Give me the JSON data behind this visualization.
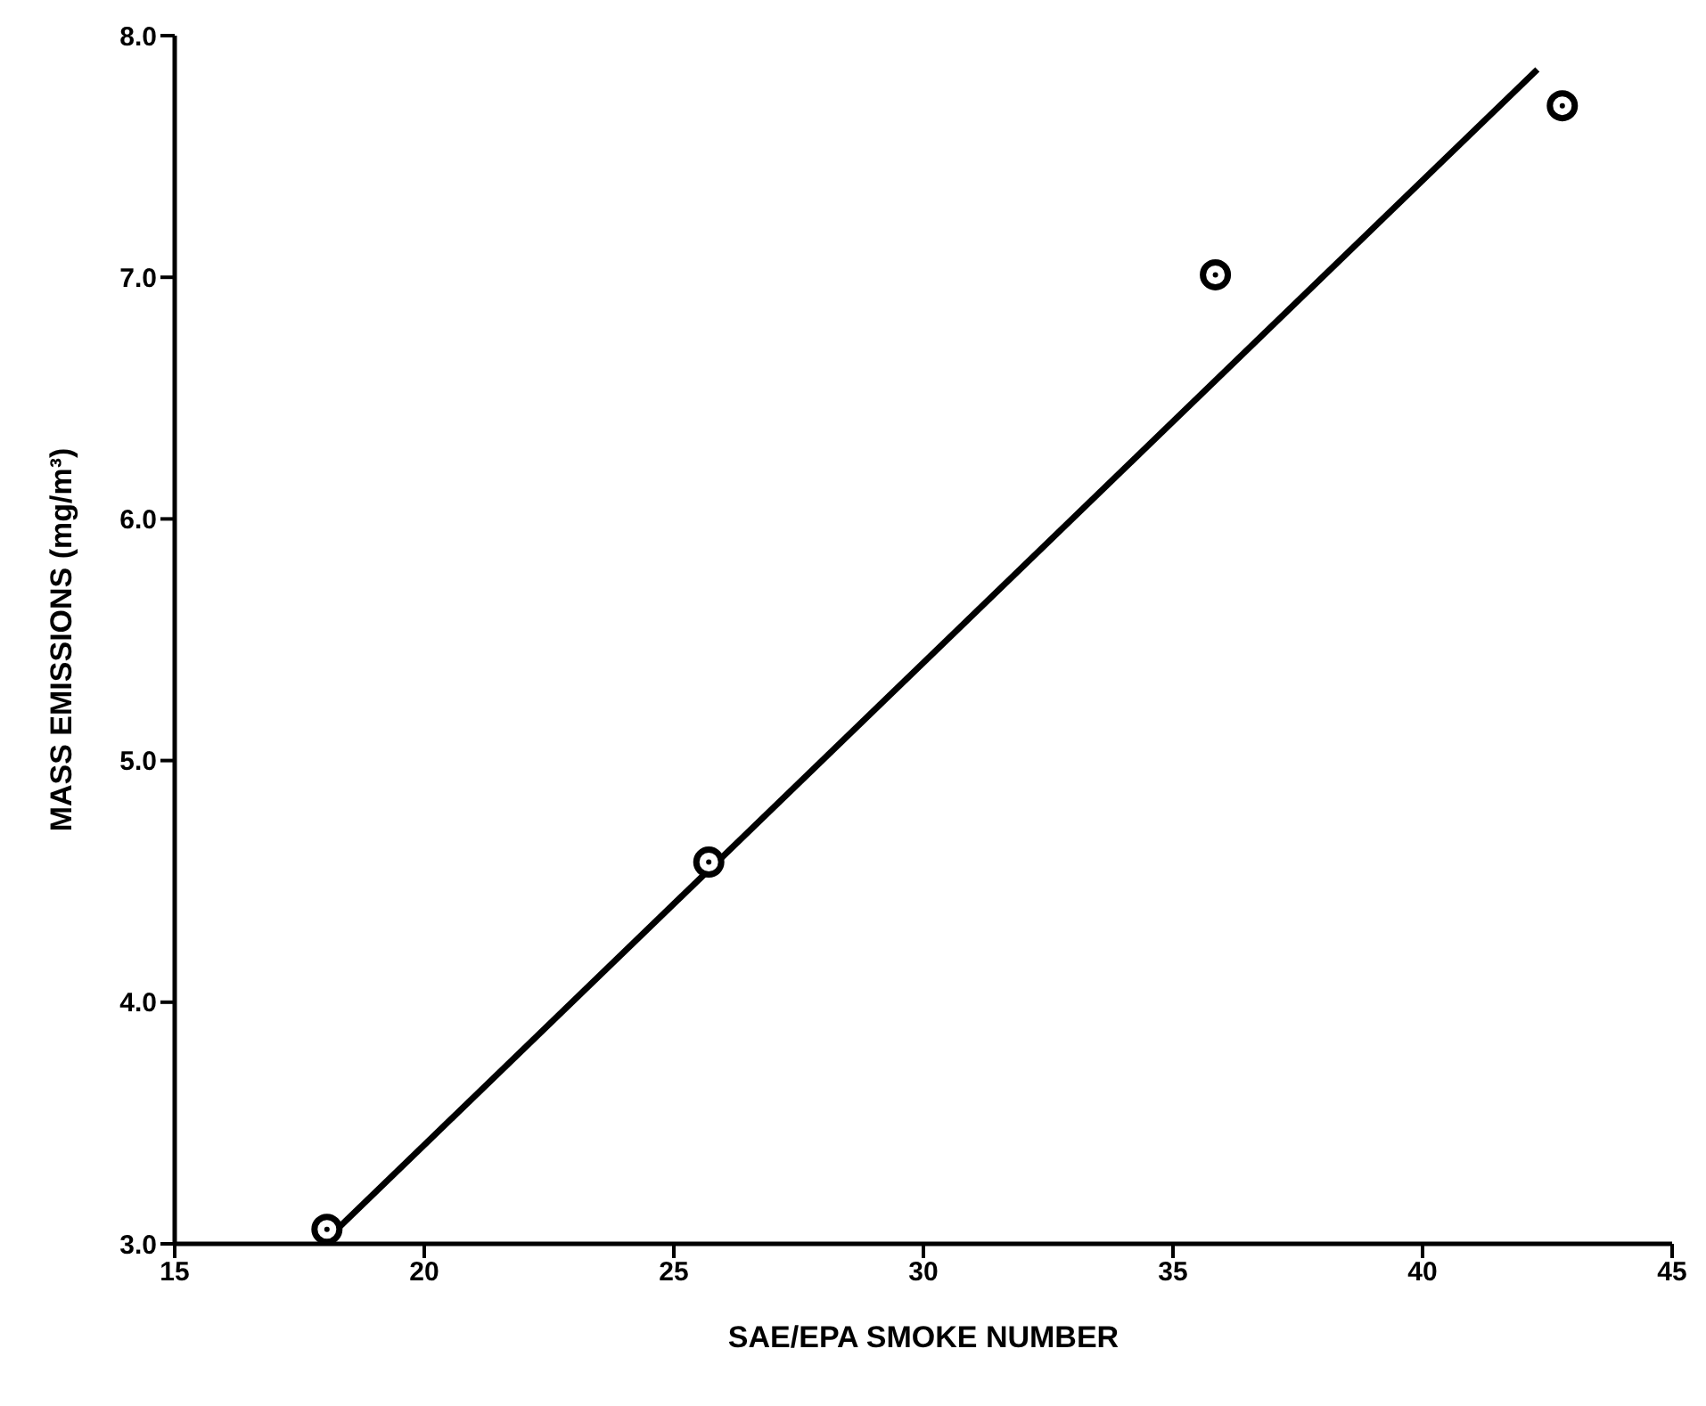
{
  "chart_data": {
    "type": "scatter",
    "xlabel": "SAE/EPA SMOKE NUMBER",
    "ylabel": "MASS EMISSIONS (mg/m³)",
    "xlim": [
      15,
      45
    ],
    "xticks": [
      15,
      20,
      25,
      30,
      35,
      40,
      45
    ],
    "ylim": [
      3,
      8
    ],
    "yticks": [
      {
        "value": 3,
        "label": "3.0"
      },
      {
        "value": 4,
        "label": "4.0"
      },
      {
        "value": 5,
        "label": "5.0"
      },
      {
        "value": 6,
        "label": "6.0"
      },
      {
        "value": 7,
        "label": "7.0"
      },
      {
        "value": 8,
        "label": "8.0"
      }
    ],
    "grid": false,
    "legend": false,
    "marker": "circle",
    "series": [
      {
        "color": "#000000",
        "x": [
          18.05,
          25.7,
          35.85,
          42.8
        ],
        "values": [
          3.06,
          4.58,
          7.01,
          7.71
        ]
      },
      {
        "type": "line",
        "color": "#000000",
        "line_style": "solid",
        "marker": "none",
        "x": [
          17.95,
          42.3
        ],
        "values": [
          3.0,
          7.86
        ]
      }
    ]
  }
}
